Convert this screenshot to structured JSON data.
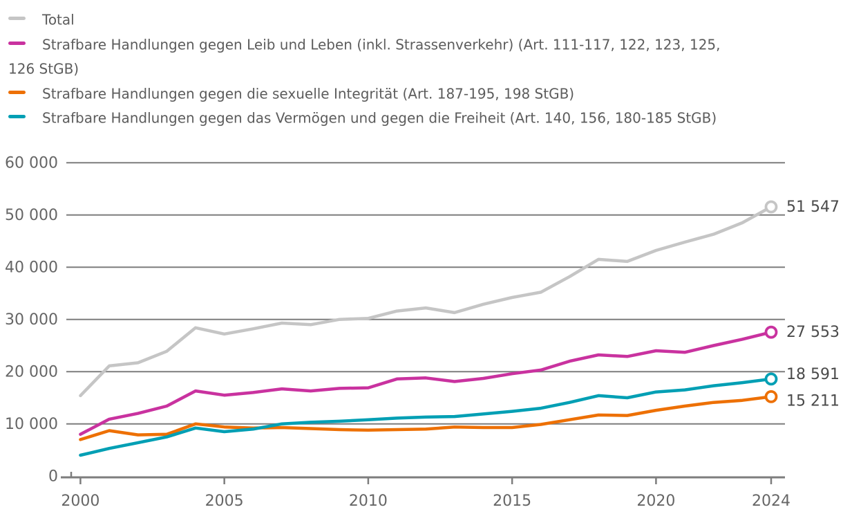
{
  "chart_data": {
    "type": "line",
    "title": "",
    "xlabel": "",
    "ylabel": "",
    "x": [
      2000,
      2001,
      2002,
      2003,
      2004,
      2005,
      2006,
      2007,
      2008,
      2009,
      2010,
      2011,
      2012,
      2013,
      2014,
      2015,
      2016,
      2017,
      2018,
      2019,
      2020,
      2021,
      2022,
      2023,
      2024
    ],
    "xtick_values": [
      2000,
      2005,
      2010,
      2015,
      2020,
      2024
    ],
    "xtick_labels": [
      "2000",
      "2005",
      "2010",
      "2015",
      "2020",
      "2024"
    ],
    "ylim": [
      0,
      60000
    ],
    "ytick_values": [
      0,
      10000,
      20000,
      30000,
      40000,
      50000,
      60000
    ],
    "ytick_labels": [
      "0",
      "10 000",
      "20 000",
      "30 000",
      "40 000",
      "50 000",
      "60 000"
    ],
    "grid": "horizontal",
    "legend_position": "top-left",
    "series": [
      {
        "id": "total",
        "name": "Total",
        "color": "#c5c5c5",
        "values": [
          15400,
          21100,
          21700,
          23900,
          28400,
          27200,
          28200,
          29300,
          29000,
          30000,
          30200,
          31600,
          32200,
          31300,
          32900,
          34200,
          35200,
          38200,
          41500,
          41100,
          43200,
          44800,
          46300,
          48500,
          51547
        ],
        "end_value": 51547,
        "end_label": "51 547"
      },
      {
        "id": "leib-und-leben",
        "name": "Strafbare Handlungen gegen Leib und Leben (inkl. Strassenverkehr) (Art. 111-117, 122, 123, 125, 126 StGB)",
        "color": "#c9329f",
        "values": [
          8000,
          10900,
          12000,
          13400,
          16300,
          15500,
          16000,
          16700,
          16300,
          16800,
          16900,
          18600,
          18800,
          18100,
          18700,
          19600,
          20300,
          22000,
          23200,
          22900,
          24000,
          23700,
          25000,
          26200,
          27553
        ],
        "end_value": 27553,
        "end_label": "27 553"
      },
      {
        "id": "sexuelle-integritaet",
        "name": "Strafbare Handlungen gegen die sexuelle Integrität (Art. 187-195, 198 StGB)",
        "color": "#ed7004",
        "values": [
          7000,
          8700,
          7900,
          8000,
          10000,
          9400,
          9200,
          9300,
          9100,
          8900,
          8800,
          8900,
          9000,
          9400,
          9300,
          9300,
          9900,
          10800,
          11700,
          11600,
          12600,
          13400,
          14100,
          14500,
          15211
        ],
        "end_value": 15211,
        "end_label": "15 211"
      },
      {
        "id": "vermoegen-freiheit",
        "name": "Strafbare Handlungen gegen das Vermögen und gegen die Freiheit (Art. 140, 156, 180-185 StGB)",
        "color": "#009fb4",
        "values": [
          4000,
          5300,
          6400,
          7500,
          9200,
          8500,
          9000,
          10000,
          10300,
          10500,
          10800,
          11100,
          11300,
          11400,
          11900,
          12400,
          13000,
          14100,
          15400,
          15000,
          16100,
          16500,
          17300,
          17900,
          18591
        ],
        "end_value": 18591,
        "end_label": "18 591"
      }
    ]
  },
  "legend": {
    "items": [
      {
        "label": "Total",
        "color": "#c5c5c5"
      },
      {
        "label": "Strafbare Handlungen gegen Leib und Leben (inkl. Strassenverkehr) (Art. 111-117, 122, 123, 125,\n126 StGB)",
        "color": "#c9329f"
      },
      {
        "label": "Strafbare Handlungen gegen die sexuelle Integrität (Art. 187-195, 198 StGB)",
        "color": "#ed7004"
      },
      {
        "label": "Strafbare Handlungen gegen das Vermögen und gegen die Freiheit (Art. 140, 156, 180-185 StGB)",
        "color": "#009fb4"
      }
    ]
  },
  "colors": {
    "background": "#ffffff",
    "gridline": "#7d7d7d",
    "tick_label": "#666666",
    "value_label": "#4a4a4a",
    "legend_text": "#5c5c5c"
  }
}
